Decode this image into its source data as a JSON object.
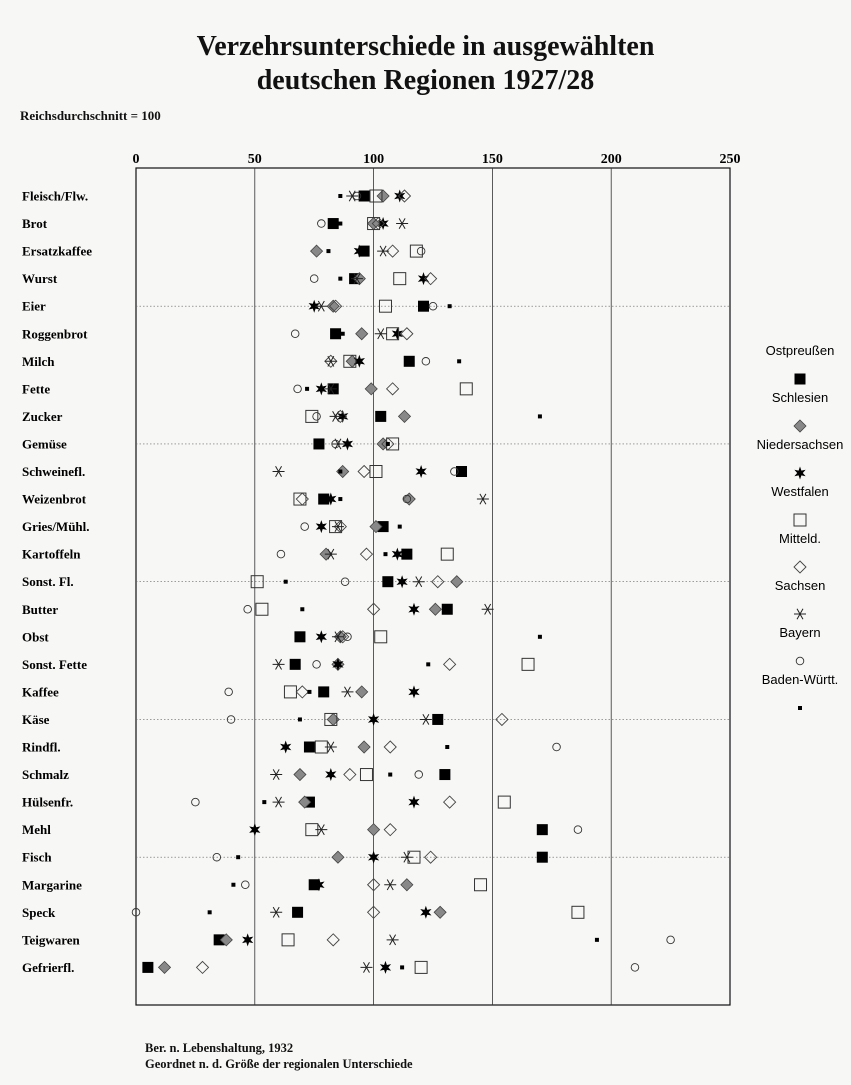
{
  "header": {
    "title_line1": "Verzehrsunterschiede in ausgewählten",
    "title_line2": "deutschen Regionen 1927/28",
    "subnote": "Reichsdurchschnitt = 100"
  },
  "footer": {
    "source_line1": "Ber. n. Lebenshaltung, 1932",
    "source_line2": "Geordnet n. d. Größe der regionalen Unterschiede"
  },
  "chart_data": {
    "type": "scatter",
    "title": "Verzehrsunterschiede in ausgewählten deutschen Regionen 1927/28",
    "xlim": [
      0,
      250
    ],
    "xticks": [
      0,
      50,
      100,
      150,
      200,
      250
    ],
    "grid": "vertical lines at 50-step ticks; dotted horizontal separators every 5 categories",
    "legend_position": "right",
    "categories": [
      "Fleisch/Flw.",
      "Brot",
      "Ersatzkaffee",
      "Wurst",
      "Eier",
      "Roggenbrot",
      "Milch",
      "Fette",
      "Zucker",
      "Gemüse",
      "Schweinefl.",
      "Weizenbrot",
      "Gries/Mühl.",
      "Kartoffeln",
      "Sonst. Fl.",
      "Butter",
      "Obst",
      "Sonst. Fette",
      "Kaffee",
      "Käse",
      "Rindfl.",
      "Schmalz",
      "Hülsenfr.",
      "Mehl",
      "Fisch",
      "Margarine",
      "Speck",
      "Teigwaren",
      "Gefrierfl."
    ],
    "series": [
      {
        "name": "Ostpreußen",
        "marker": "filled-square",
        "values": [
          96,
          83,
          96,
          92,
          121,
          84,
          115,
          83,
          103,
          77,
          137,
          79,
          104,
          114,
          106,
          131,
          69,
          67,
          79,
          127,
          73,
          130,
          73,
          171,
          171,
          75,
          68,
          35,
          5
        ]
      },
      {
        "name": "Schlesien",
        "marker": "gray-diamond",
        "values": [
          104,
          100,
          76,
          94,
          83,
          95,
          91,
          99,
          113,
          104,
          87,
          115,
          101,
          80,
          135,
          126,
          86,
          85,
          95,
          83,
          96,
          69,
          71,
          100,
          85,
          114,
          128,
          38,
          12
        ]
      },
      {
        "name": "Niedersachsen",
        "marker": "star",
        "values": [
          111,
          104,
          94,
          121,
          75,
          110,
          94,
          78,
          87,
          89,
          120,
          82,
          78,
          110,
          112,
          117,
          78,
          85,
          117,
          100,
          63,
          82,
          117,
          50,
          100,
          77,
          122,
          47,
          105
        ]
      },
      {
        "name": "Westfalen",
        "marker": "open-square",
        "values": [
          101,
          100,
          118,
          111,
          105,
          108,
          90,
          139,
          74,
          108,
          101,
          69,
          84,
          131,
          51,
          53,
          103,
          165,
          65,
          82,
          78,
          97,
          155,
          74,
          117,
          145,
          186,
          64,
          120
        ]
      },
      {
        "name": "Mitteld.",
        "marker": "open-diamond",
        "values": [
          113,
          102,
          108,
          124,
          84,
          114,
          82,
          108,
          86,
          106,
          96,
          70,
          86,
          97,
          127,
          100,
          87,
          132,
          70,
          154,
          107,
          90,
          132,
          107,
          124,
          100,
          100,
          83,
          28
        ]
      },
      {
        "name": "Sachsen",
        "marker": "asterisk",
        "values": [
          91,
          112,
          104,
          93,
          78,
          103,
          82,
          82,
          84,
          85,
          60,
          146,
          85,
          82,
          119,
          148,
          85,
          60,
          89,
          122,
          82,
          59,
          60,
          78,
          114,
          107,
          59,
          108,
          97
        ]
      },
      {
        "name": "Bayern",
        "marker": "open-circle",
        "values": [
          93,
          78,
          120,
          75,
          125,
          67,
          122,
          68,
          76,
          84,
          134,
          114,
          71,
          61,
          88,
          47,
          89,
          76,
          39,
          40,
          177,
          119,
          25,
          186,
          34,
          46,
          0,
          225,
          210
        ]
      },
      {
        "name": "Baden-Württ.",
        "marker": "small-square",
        "values": [
          86,
          86,
          81,
          86,
          132,
          87,
          136,
          72,
          170,
          106,
          86,
          86,
          111,
          105,
          63,
          70,
          170,
          123,
          73,
          69,
          131,
          107,
          54,
          172,
          43,
          41,
          31,
          194,
          112
        ]
      }
    ]
  }
}
